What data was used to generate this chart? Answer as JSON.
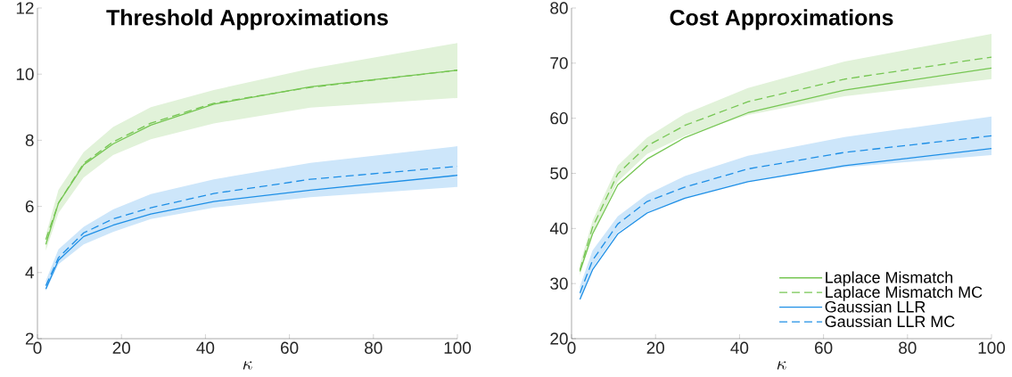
{
  "chart_data": [
    {
      "type": "line",
      "title": "Threshold Approximations",
      "xlabel": "\\kappa",
      "xlim": [
        0,
        100
      ],
      "ylim": [
        2,
        12
      ],
      "xticks": [
        0,
        20,
        40,
        60,
        80,
        100
      ],
      "yticks": [
        2,
        4,
        6,
        8,
        10,
        12
      ],
      "series": [
        {
          "color": "#76c653",
          "line_style": "solid",
          "x": [
            2,
            5,
            11,
            18,
            27,
            42,
            65,
            100
          ],
          "values": [
            4.85,
            6.1,
            7.26,
            7.89,
            8.46,
            9.09,
            9.62,
            10.12
          ]
        },
        {
          "color": "#76c653",
          "line_style": "dashed",
          "x": [
            2,
            5,
            11,
            18,
            27,
            42,
            65,
            100
          ],
          "values": [
            5.0,
            6.1,
            7.3,
            7.95,
            8.52,
            9.12,
            9.6,
            10.12
          ],
          "lower": [
            4.66,
            5.8,
            6.87,
            7.55,
            8.03,
            8.51,
            8.99,
            9.28
          ],
          "upper": [
            5.14,
            6.5,
            7.64,
            8.4,
            9.0,
            9.52,
            10.17,
            10.94
          ]
        },
        {
          "color": "#1e8fe6",
          "line_style": "solid",
          "x": [
            2,
            5,
            11,
            18,
            27,
            42,
            65,
            100
          ],
          "values": [
            3.5,
            4.37,
            5.09,
            5.43,
            5.77,
            6.15,
            6.49,
            6.94
          ]
        },
        {
          "color": "#1e8fe6",
          "line_style": "dashed",
          "x": [
            2,
            5,
            11,
            18,
            27,
            42,
            65,
            100
          ],
          "values": [
            3.6,
            4.45,
            5.2,
            5.62,
            5.96,
            6.39,
            6.82,
            7.21
          ],
          "lower": [
            3.45,
            4.25,
            4.85,
            5.23,
            5.62,
            5.96,
            6.28,
            6.59
          ],
          "upper": [
            3.75,
            4.7,
            5.38,
            5.91,
            6.37,
            6.82,
            7.32,
            7.82
          ]
        }
      ]
    },
    {
      "type": "line",
      "title": "Cost Approximations",
      "xlabel": "\\kappa",
      "xlim": [
        0,
        100
      ],
      "ylim": [
        20,
        80
      ],
      "xticks": [
        0,
        20,
        40,
        60,
        80,
        100
      ],
      "yticks": [
        20,
        30,
        40,
        50,
        60,
        70,
        80
      ],
      "legend": "bottom right",
      "series": [
        {
          "name": "Laplace Mismatch",
          "color": "#76c653",
          "line_style": "solid",
          "x": [
            2,
            5,
            11,
            18,
            27,
            42,
            65,
            100
          ],
          "values": [
            32.2,
            39.0,
            47.9,
            52.6,
            56.5,
            61.0,
            65.1,
            69.1
          ]
        },
        {
          "name": "Laplace Mismatch MC",
          "color": "#76c653",
          "line_style": "dashed",
          "x": [
            2,
            5,
            11,
            18,
            27,
            42,
            65,
            100
          ],
          "values": [
            32.5,
            40.2,
            49.9,
            55.0,
            58.7,
            63.0,
            67.1,
            71.1
          ],
          "lower": [
            31.5,
            39.0,
            48.5,
            53.5,
            56.8,
            60.6,
            64.0,
            67.1
          ],
          "upper": [
            33.5,
            41.4,
            51.4,
            56.5,
            60.8,
            65.5,
            70.3,
            75.3
          ]
        },
        {
          "name": "Gaussian LLR",
          "color": "#1e8fe6",
          "line_style": "solid",
          "x": [
            2,
            5,
            11,
            18,
            27,
            42,
            65,
            100
          ],
          "values": [
            27.1,
            32.5,
            39.0,
            42.8,
            45.5,
            48.5,
            51.4,
            54.5
          ]
        },
        {
          "name": "Gaussian LLR MC",
          "color": "#1e8fe6",
          "line_style": "dashed",
          "x": [
            2,
            5,
            11,
            18,
            27,
            42,
            65,
            100
          ],
          "values": [
            28.3,
            34.2,
            40.8,
            44.9,
            47.5,
            50.8,
            53.8,
            56.8
          ],
          "lower": [
            27.2,
            32.8,
            39.3,
            42.8,
            45.5,
            48.5,
            51.1,
            53.3
          ],
          "upper": [
            29.5,
            36.0,
            42.2,
            46.2,
            49.5,
            53.2,
            56.6,
            60.3
          ]
        }
      ]
    }
  ]
}
